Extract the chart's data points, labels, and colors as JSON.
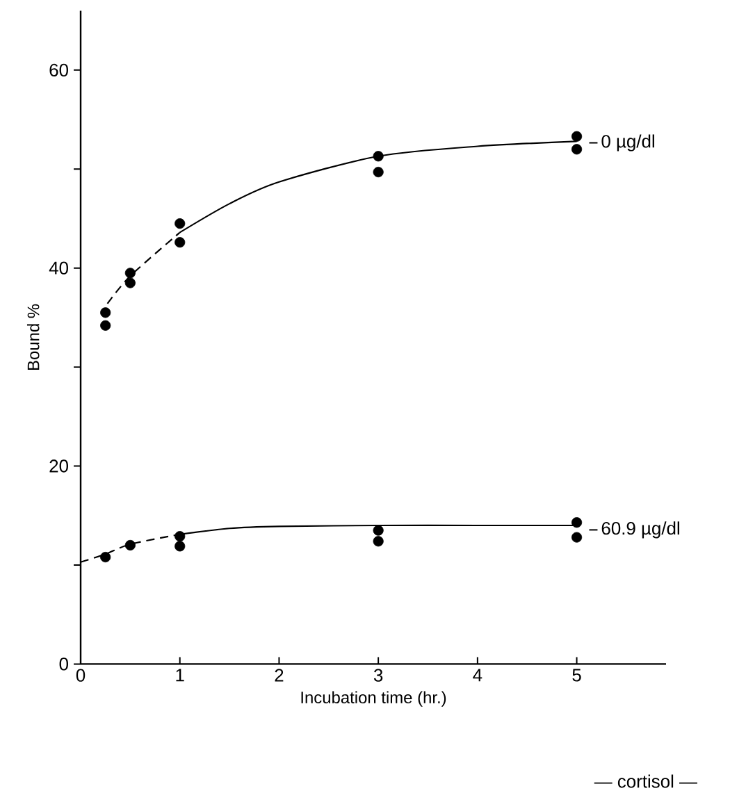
{
  "chart_data": {
    "type": "scatter",
    "xlabel": "Incubation time (hr.)",
    "ylabel": "Bound %",
    "xlim": [
      0,
      5.9
    ],
    "ylim": [
      0,
      66
    ],
    "xticks": [
      0,
      1,
      2,
      3,
      4,
      5
    ],
    "yticks": [
      0,
      {
        "value": 10,
        "label": null
      },
      20,
      {
        "value": 30,
        "label": null
      },
      40,
      {
        "value": 50,
        "label": null
      },
      60
    ],
    "grid": false,
    "legend": "right",
    "series": [
      {
        "name": "0 µg/dl",
        "color": "#000000",
        "marker": "circle",
        "x": [
          0.25,
          0.25,
          0.5,
          0.5,
          1,
          1,
          3,
          3,
          5,
          5
        ],
        "values": [
          35.5,
          34.2,
          39.5,
          38.5,
          44.5,
          42.6,
          51.3,
          49.7,
          53.3,
          52.0
        ]
      },
      {
        "name": "60.9 µg/dl",
        "color": "#000000",
        "marker": "circle",
        "x": [
          0.25,
          0.5,
          1,
          1,
          3,
          3,
          5,
          5
        ],
        "values": [
          10.8,
          12.0,
          12.9,
          11.9,
          13.5,
          12.4,
          14.3,
          12.8
        ]
      },
      {
        "type": "line",
        "color": "#000000",
        "marker": "none",
        "line_style": "dashed",
        "x": [
          0.27,
          0.5,
          1
        ],
        "values": [
          36.4,
          39.2,
          43.6
        ]
      },
      {
        "type": "line",
        "color": "#000000",
        "marker": "none",
        "line_style": "solid",
        "x": [
          1,
          1.5,
          2,
          3,
          4,
          5
        ],
        "values": [
          43.6,
          46.5,
          48.7,
          51.3,
          52.3,
          52.8
        ]
      },
      {
        "type": "line",
        "color": "#000000",
        "marker": "none",
        "line_style": "dashed",
        "x": [
          0,
          0.25,
          0.5,
          1
        ],
        "values": [
          10.3,
          11.1,
          12.1,
          13.1
        ]
      },
      {
        "type": "line",
        "color": "#000000",
        "marker": "none",
        "line_style": "solid",
        "x": [
          1,
          1.5,
          2,
          3,
          4,
          5
        ],
        "values": [
          13.1,
          13.7,
          13.9,
          14.0,
          14.0,
          14.0
        ]
      }
    ],
    "annotations": [
      "— cortisol —"
    ]
  }
}
